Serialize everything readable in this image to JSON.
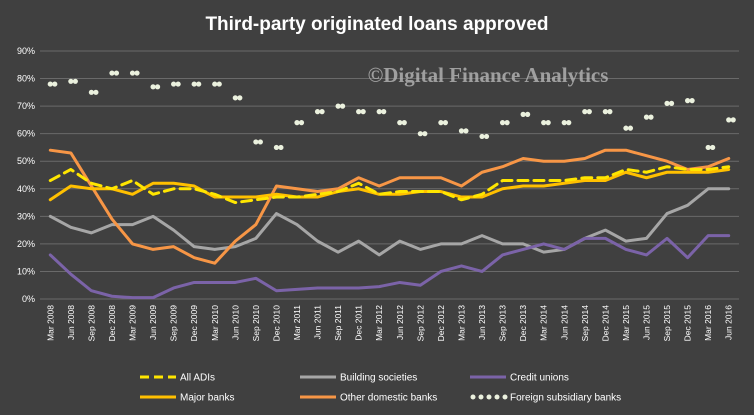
{
  "chart_data": {
    "type": "line",
    "title": "Third-party originated loans approved",
    "watermark": "©Digital Finance Analytics",
    "ylim": [
      0,
      90
    ],
    "y_ticks": [
      "0%",
      "10%",
      "20%",
      "30%",
      "40%",
      "50%",
      "60%",
      "70%",
      "80%",
      "90%"
    ],
    "grid": true,
    "legend_position": "bottom",
    "categories": [
      "Mar 2008",
      "Jun 2008",
      "Sep 2008",
      "Dec 2008",
      "Mar 2009",
      "Jun 2009",
      "Sep 2009",
      "Dec 2009",
      "Mar 2010",
      "Jun 2010",
      "Sep 2010",
      "Dec 2010",
      "Mar 2011",
      "Jun 2011",
      "Sep 2011",
      "Dec 2011",
      "Mar 2012",
      "Jun 2012",
      "Sep 2012",
      "Dec 2012",
      "Mar 2013",
      "Jun 2013",
      "Sep 2013",
      "Dec 2013",
      "Mar 2014",
      "Jun 2014",
      "Sep 2014",
      "Dec 2014",
      "Mar 2015",
      "Jun 2015",
      "Sep 2015",
      "Dec 2015",
      "Mar 2016",
      "Jun 2016"
    ],
    "series": [
      {
        "name": "All ADIs",
        "color": "#FFE600",
        "style": "dash",
        "values": [
          43,
          47,
          42,
          40,
          43,
          38,
          40,
          40,
          38,
          35,
          36,
          37,
          37,
          38,
          39,
          42,
          38,
          39,
          39,
          39,
          36,
          38,
          43,
          43,
          43,
          43,
          44,
          44,
          47,
          46,
          48,
          47,
          47,
          48
        ]
      },
      {
        "name": "Building societies",
        "color": "#A6A6A6",
        "style": "solid",
        "values": [
          30,
          26,
          24,
          27,
          27,
          30,
          25,
          19,
          18,
          19,
          22,
          31,
          27,
          21,
          17,
          21,
          16,
          21,
          18,
          20,
          20,
          23,
          20,
          20,
          17,
          18,
          22,
          25,
          21,
          22,
          31,
          34,
          40,
          40
        ]
      },
      {
        "name": "Credit unions",
        "color": "#7B63A8",
        "style": "solid",
        "values": [
          16,
          9,
          3,
          1,
          0.5,
          0.5,
          4,
          6,
          6,
          6,
          7.5,
          3,
          3.5,
          4,
          4,
          4,
          4.5,
          6,
          5,
          10,
          12,
          10,
          16,
          18,
          20,
          18,
          22,
          22,
          18,
          16,
          22,
          15,
          23,
          23
        ]
      },
      {
        "name": "Major banks",
        "color": "#FFC000",
        "style": "solid",
        "values": [
          36,
          41,
          40,
          40,
          38,
          42,
          42,
          41,
          37,
          37,
          37,
          38,
          37,
          37,
          39,
          40,
          38,
          38,
          39,
          39,
          37,
          37,
          40,
          41,
          41,
          42,
          43,
          43,
          46,
          44,
          46,
          46,
          46,
          47
        ]
      },
      {
        "name": "Other domestic banks",
        "color": "#F79646",
        "style": "solid",
        "values": [
          54,
          53,
          41,
          29,
          20,
          18,
          19,
          15,
          13,
          21,
          27,
          41,
          40,
          39,
          40,
          44,
          41,
          44,
          44,
          44,
          41,
          46,
          48,
          51,
          50,
          50,
          51,
          54,
          54,
          52,
          50,
          47,
          48,
          51
        ]
      },
      {
        "name": "Foreign subsidiary banks",
        "color": "#EBF1DE",
        "style": "dots",
        "values": [
          78,
          79,
          75,
          82,
          82,
          77,
          78,
          78,
          78,
          73,
          57,
          55,
          64,
          68,
          70,
          68,
          68,
          64,
          60,
          64,
          61,
          59,
          64,
          67,
          64,
          64,
          68,
          68,
          62,
          66,
          71,
          72,
          55,
          65
        ]
      }
    ]
  }
}
